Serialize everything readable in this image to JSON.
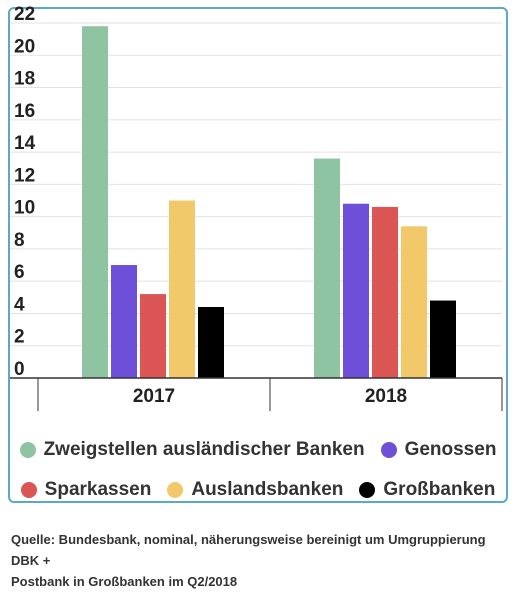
{
  "chart_data": {
    "type": "bar",
    "categories": [
      "2017",
      "2018"
    ],
    "series": [
      {
        "name": "Zweigstellen ausländischer Banken",
        "color": "#8fc4a3",
        "values": [
          21.8,
          13.6
        ]
      },
      {
        "name": "Genossen",
        "color": "#6d4fd9",
        "values": [
          7.0,
          10.8
        ]
      },
      {
        "name": "Sparkassen",
        "color": "#dc5555",
        "values": [
          5.2,
          10.6
        ]
      },
      {
        "name": "Auslandsbanken",
        "color": "#f1c96a",
        "values": [
          11.0,
          9.4
        ]
      },
      {
        "name": "Großbanken",
        "color": "#000000",
        "values": [
          4.4,
          4.8
        ]
      }
    ],
    "yticks": [
      0,
      2,
      4,
      6,
      8,
      10,
      12,
      14,
      16,
      18,
      20,
      22
    ],
    "ylim": [
      0,
      22
    ],
    "grid": true,
    "legend_position": "bottom"
  },
  "caption": {
    "line1": "Quelle: Bundesbank, nominal, näherungsweise bereinigt um Umgruppierung DBK +",
    "line2": "Postbank in Großbanken im Q2/2018"
  }
}
